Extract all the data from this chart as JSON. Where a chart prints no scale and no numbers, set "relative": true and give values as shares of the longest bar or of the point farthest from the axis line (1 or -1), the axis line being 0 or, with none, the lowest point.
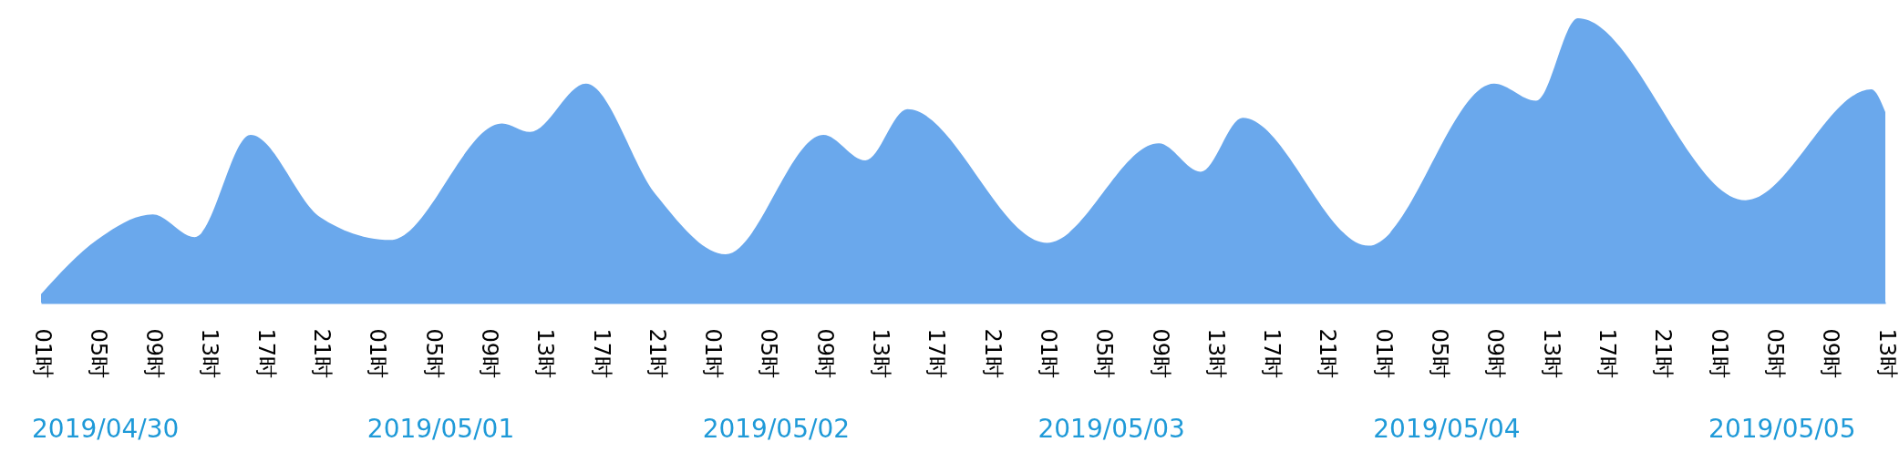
{
  "chart_data": {
    "type": "area",
    "relative": true,
    "color": "#6aa8ec",
    "x": [
      "2019-04-30T01:00",
      "2019-04-30T05:00",
      "2019-04-30T09:00",
      "2019-04-30T12:00",
      "2019-04-30T16:00",
      "2019-04-30T21:00",
      "2019-05-01T02:00",
      "2019-05-01T10:00",
      "2019-05-01T12:00",
      "2019-05-01T16:00",
      "2019-05-01T21:00",
      "2019-05-02T02:00",
      "2019-05-02T09:00",
      "2019-05-02T12:00",
      "2019-05-02T15:00",
      "2019-05-03T01:00",
      "2019-05-03T09:00",
      "2019-05-03T12:00",
      "2019-05-03T15:00",
      "2019-05-04T00:00",
      "2019-05-04T09:00",
      "2019-05-04T12:00",
      "2019-05-04T15:00",
      "2019-05-05T03:00",
      "2019-05-05T12:00",
      "2019-05-05T13:00"
    ],
    "values": [
      0.03,
      0.22,
      0.31,
      0.23,
      0.59,
      0.3,
      0.22,
      0.63,
      0.6,
      0.77,
      0.38,
      0.17,
      0.59,
      0.5,
      0.68,
      0.21,
      0.56,
      0.46,
      0.65,
      0.2,
      0.77,
      0.71,
      1,
      0.36,
      0.75,
      0.67
    ],
    "xlim": [
      "2019-04-30T01:00",
      "2019-05-05T13:00"
    ],
    "xticks": [
      {
        "value": "2019-04-30T01:00",
        "label": "01时"
      },
      {
        "value": "2019-04-30T05:00",
        "label": "05时"
      },
      {
        "value": "2019-04-30T09:00",
        "label": "09时"
      },
      {
        "value": "2019-04-30T13:00",
        "label": "13时"
      },
      {
        "value": "2019-04-30T17:00",
        "label": "17时"
      },
      {
        "value": "2019-04-30T21:00",
        "label": "21时"
      },
      {
        "value": "2019-05-01T01:00",
        "label": "01时"
      },
      {
        "value": "2019-05-01T05:00",
        "label": "05时"
      },
      {
        "value": "2019-05-01T09:00",
        "label": "09时"
      },
      {
        "value": "2019-05-01T13:00",
        "label": "13时"
      },
      {
        "value": "2019-05-01T17:00",
        "label": "17时"
      },
      {
        "value": "2019-05-01T21:00",
        "label": "21时"
      },
      {
        "value": "2019-05-02T01:00",
        "label": "01时"
      },
      {
        "value": "2019-05-02T05:00",
        "label": "05时"
      },
      {
        "value": "2019-05-02T09:00",
        "label": "09时"
      },
      {
        "value": "2019-05-02T13:00",
        "label": "13时"
      },
      {
        "value": "2019-05-02T17:00",
        "label": "17时"
      },
      {
        "value": "2019-05-02T21:00",
        "label": "21时"
      },
      {
        "value": "2019-05-03T01:00",
        "label": "01时"
      },
      {
        "value": "2019-05-03T05:00",
        "label": "05时"
      },
      {
        "value": "2019-05-03T09:00",
        "label": "09时"
      },
      {
        "value": "2019-05-03T13:00",
        "label": "13时"
      },
      {
        "value": "2019-05-03T17:00",
        "label": "17时"
      },
      {
        "value": "2019-05-03T21:00",
        "label": "21时"
      },
      {
        "value": "2019-05-04T01:00",
        "label": "01时"
      },
      {
        "value": "2019-05-04T05:00",
        "label": "05时"
      },
      {
        "value": "2019-05-04T09:00",
        "label": "09时"
      },
      {
        "value": "2019-05-04T13:00",
        "label": "13时"
      },
      {
        "value": "2019-05-04T17:00",
        "label": "17时"
      },
      {
        "value": "2019-05-04T21:00",
        "label": "21时"
      },
      {
        "value": "2019-05-05T01:00",
        "label": "01时"
      },
      {
        "value": "2019-05-05T05:00",
        "label": "05时"
      },
      {
        "value": "2019-05-05T09:00",
        "label": "09时"
      },
      {
        "value": "2019-05-05T13:00",
        "label": "13时"
      }
    ],
    "x2lim": [
      "2019-04-30T01:00",
      "2019-05-05T01:00"
    ],
    "x2ticks": [
      {
        "value": "2019-04-30T01:00",
        "label": "2019/04/30"
      },
      {
        "value": "2019-05-01T01:00",
        "label": "2019/05/01"
      },
      {
        "value": "2019-05-02T01:00",
        "label": "2019/05/02"
      },
      {
        "value": "2019-05-03T01:00",
        "label": "2019/05/03"
      },
      {
        "value": "2019-05-04T01:00",
        "label": "2019/05/04"
      },
      {
        "value": "2019-05-05T01:00",
        "label": "2019/05/05"
      }
    ],
    "grid": false
  }
}
